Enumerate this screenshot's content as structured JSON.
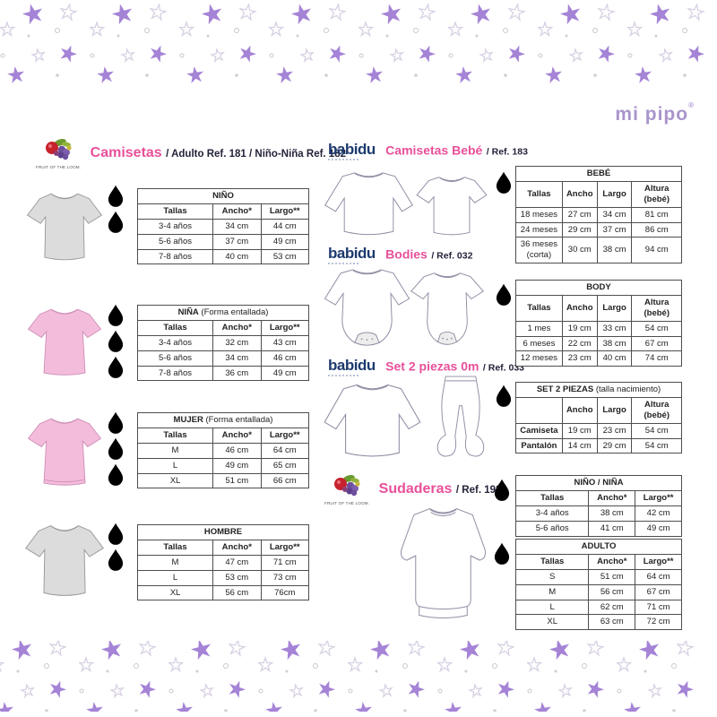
{
  "brand": {
    "name": "mi pipo",
    "registered": "®"
  },
  "colors": {
    "accent_pink": "#e8509a",
    "star_purple": "#a583d6",
    "babidu_navy": "#1c3a6e",
    "mipipo_lilac": "#a995cc"
  },
  "sections": {
    "camisetas": {
      "brand_logo": "FRUIT OF THE LOOM.",
      "title": "Camisetas",
      "ref": "/ Adulto Ref. 181 / Niño-Niña Ref. 182"
    },
    "camisetas_bebe": {
      "brand_logo": "babidu",
      "title": "Camisetas Bebé",
      "ref": "/ Ref. 183"
    },
    "bodies": {
      "brand_logo": "babidu",
      "title": "Bodies",
      "ref": "/ Ref. 032"
    },
    "set2piezas": {
      "brand_logo": "babidu",
      "title": "Set 2 piezas 0m",
      "ref": "/ Ref. 033"
    },
    "sudaderas": {
      "brand_logo": "FRUIT OF THE LOOM.",
      "title": "Sudaderas",
      "ref": "/ Ref. 192"
    }
  },
  "tables": {
    "nino": {
      "title": "NIÑO",
      "subtitle": "",
      "headers": [
        "Tallas",
        "Ancho*",
        "Largo**"
      ],
      "rows": [
        [
          "3-4 años",
          "34 cm",
          "44 cm"
        ],
        [
          "5-6 años",
          "37 cm",
          "49 cm"
        ],
        [
          "7-8 años",
          "40 cm",
          "53 cm"
        ]
      ],
      "droplets": [
        "outline",
        "gray"
      ]
    },
    "nina": {
      "title": "NIÑA",
      "subtitle": "(Forma entallada)",
      "headers": [
        "Tallas",
        "Ancho*",
        "Largo**"
      ],
      "rows": [
        [
          "3-4 años",
          "32 cm",
          "43 cm"
        ],
        [
          "5-6 años",
          "34 cm",
          "46 cm"
        ],
        [
          "7-8 años",
          "36 cm",
          "49 cm"
        ]
      ],
      "droplets": [
        "outline",
        "gray",
        "pink"
      ]
    },
    "mujer": {
      "title": "MUJER",
      "subtitle": "(Forma entallada)",
      "headers": [
        "Tallas",
        "Ancho*",
        "Largo**"
      ],
      "rows": [
        [
          "M",
          "46 cm",
          "64 cm"
        ],
        [
          "L",
          "49 cm",
          "65 cm"
        ],
        [
          "XL",
          "51 cm",
          "66 cm"
        ]
      ],
      "droplets": [
        "outline",
        "gray",
        "pink"
      ]
    },
    "hombre": {
      "title": "HOMBRE",
      "subtitle": "",
      "headers": [
        "Tallas",
        "Ancho*",
        "Largo**"
      ],
      "rows": [
        [
          "M",
          "47 cm",
          "71 cm"
        ],
        [
          "L",
          "53 cm",
          "73 cm"
        ],
        [
          "XL",
          "56 cm",
          "76cm"
        ]
      ],
      "droplets": [
        "outline",
        "gray"
      ]
    },
    "bebe": {
      "title": "BEBÉ",
      "subtitle": "",
      "headers": [
        "Tallas",
        "Ancho",
        "Largo",
        "Altura (bebé)"
      ],
      "rows": [
        [
          "18 meses",
          "27 cm",
          "34 cm",
          "81 cm"
        ],
        [
          "24 meses",
          "29 cm",
          "37 cm",
          "86 cm"
        ],
        [
          "36 meses (corta)",
          "30 cm",
          "38 cm",
          "94 cm"
        ]
      ],
      "droplets": [
        "outline"
      ]
    },
    "body": {
      "title": "BODY",
      "subtitle": "",
      "headers": [
        "Tallas",
        "Ancho",
        "Largo",
        "Altura (bebé)"
      ],
      "rows": [
        [
          "1 mes",
          "19 cm",
          "33 cm",
          "54 cm"
        ],
        [
          "6 meses",
          "22 cm",
          "38 cm",
          "67 cm"
        ],
        [
          "12 meses",
          "23 cm",
          "40 cm",
          "74 cm"
        ]
      ],
      "droplets": [
        "outline"
      ]
    },
    "set": {
      "title": "SET 2 PIEZAS",
      "subtitle": "(talla nacimiento)",
      "bold_first_col": true,
      "headers": [
        "",
        "Ancho",
        "Largo",
        "Altura (bebé)"
      ],
      "rows": [
        [
          "Camiseta",
          "19 cm",
          "23 cm",
          "54 cm"
        ],
        [
          "Pantalón",
          "14 cm",
          "29 cm",
          "54 cm"
        ]
      ],
      "droplets": [
        "outline"
      ]
    },
    "nino_nina": {
      "title": "NIÑO / NIÑA",
      "subtitle": "",
      "headers": [
        "Tallas",
        "Ancho*",
        "Largo**"
      ],
      "rows": [
        [
          "3-4 años",
          "38 cm",
          "42 cm"
        ],
        [
          "5-6 años",
          "41 cm",
          "49 cm"
        ]
      ],
      "droplets": [
        "outline"
      ]
    },
    "adulto": {
      "title": "ADULTO",
      "subtitle": "",
      "headers": [
        "Tallas",
        "Ancho*",
        "Largo**"
      ],
      "rows": [
        [
          "S",
          "51 cm",
          "64 cm"
        ],
        [
          "M",
          "56 cm",
          "67 cm"
        ],
        [
          "L",
          "62 cm",
          "71 cm"
        ],
        [
          "XL",
          "63 cm",
          "72 cm"
        ]
      ],
      "droplets": [
        "outline"
      ]
    }
  }
}
